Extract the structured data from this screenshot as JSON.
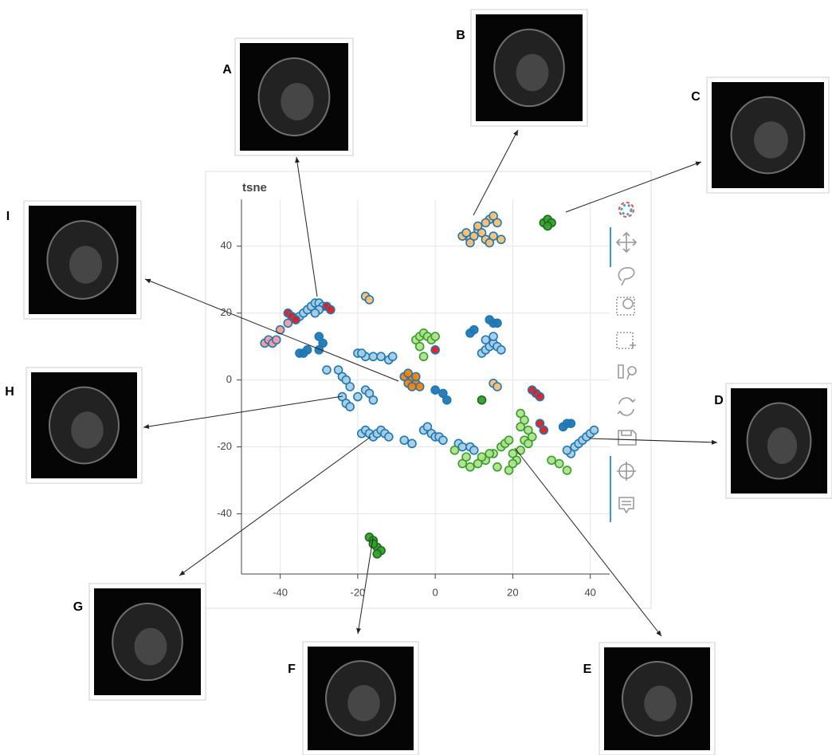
{
  "chart_data": {
    "type": "scatter",
    "title": "tsne",
    "annotations": [
      "A",
      "B",
      "C",
      "D",
      "E",
      "F",
      "G",
      "H",
      "I"
    ],
    "xlim": [
      -50,
      45
    ],
    "ylim": [
      -58,
      54
    ],
    "xticks": [
      -40,
      -20,
      0,
      20,
      40
    ],
    "yticks": [
      -40,
      -20,
      0,
      20,
      40
    ],
    "grid": true,
    "series": [
      {
        "color": "#a6cee3",
        "edgecolor": "#1f78b4",
        "x": [
          -36,
          -35,
          -34,
          -33,
          -32,
          -31,
          -30,
          -29,
          -30,
          -31,
          -20,
          -18,
          -16,
          -14,
          -12,
          -11,
          -19,
          -28,
          -25,
          -24,
          -23,
          -22,
          -24,
          -23,
          -22,
          -18,
          -17,
          -16,
          -20,
          12,
          13,
          14,
          15,
          16,
          17,
          13,
          15,
          -19,
          -18,
          -17,
          -16,
          -15,
          -14,
          -13,
          -12,
          -8,
          -6,
          -3,
          -2,
          -1,
          0,
          1,
          2,
          6,
          7,
          9,
          10,
          35,
          36,
          37,
          38,
          39,
          40,
          41,
          34
        ],
        "values": [
          18,
          19,
          20,
          21,
          22,
          23,
          23,
          22,
          21,
          20,
          8,
          7,
          7,
          7,
          6,
          7,
          8,
          3,
          3,
          1,
          0,
          -2,
          -5,
          -7,
          -8,
          -3,
          -4,
          -6,
          -5,
          8,
          9,
          10,
          11,
          10,
          9,
          12,
          13,
          -16,
          -15,
          -16,
          -17,
          -16,
          -15,
          -16,
          -17,
          -18,
          -19,
          -15,
          -14,
          -16,
          -17,
          -17,
          -18,
          -19,
          -20,
          -20,
          -21,
          -22,
          -20,
          -19,
          -18,
          -17,
          -16,
          -15,
          -21
        ]
      },
      {
        "color": "#1f78b4",
        "edgecolor": "#1f78b4",
        "x": [
          -35,
          -34,
          -33,
          -30,
          -29,
          -30,
          0,
          2,
          3,
          9,
          10,
          14,
          15,
          16,
          33,
          34,
          35
        ],
        "values": [
          8,
          8,
          9,
          13,
          11,
          9,
          -3,
          -4,
          -6,
          14,
          15,
          18,
          17,
          17,
          -14,
          -13,
          -13
        ]
      },
      {
        "color": "#b2df8a",
        "edgecolor": "#33a02c",
        "x": [
          -5,
          -4,
          -3,
          -2,
          -1,
          0,
          -3,
          -4,
          22,
          23,
          22,
          24,
          5,
          7,
          9,
          11,
          13,
          15,
          17,
          18,
          19,
          20,
          21,
          22,
          23,
          24,
          25,
          8,
          12,
          16,
          19,
          14,
          20,
          30,
          32,
          34
        ],
        "values": [
          12,
          13,
          14,
          13,
          12,
          13,
          7,
          10,
          -10,
          -12,
          -14,
          -15,
          -21,
          -25,
          -26,
          -25,
          -24,
          -22,
          -20,
          -19,
          -18,
          -22,
          -24,
          -21,
          -18,
          -19,
          -17,
          -23,
          -23,
          -26,
          -27,
          -22,
          -25,
          -24,
          -25,
          -27
        ]
      },
      {
        "color": "#33a02c",
        "edgecolor": "#1e6b1a",
        "x": [
          28,
          29,
          30,
          29,
          12,
          -17,
          -16,
          -15,
          -14,
          -15,
          -16
        ],
        "values": [
          47,
          48,
          47,
          46,
          -6,
          -47,
          -48,
          -50,
          -51,
          -52,
          -49
        ]
      },
      {
        "color": "#fb9a99",
        "edgecolor": "#1f78b4",
        "x": [
          -44,
          -43,
          -42,
          -40,
          -41,
          -38
        ],
        "values": [
          11,
          12,
          11,
          15,
          12,
          17
        ]
      },
      {
        "color": "#e31a1c",
        "edgecolor": "#1f78b4",
        "x": [
          -38,
          -37,
          -36,
          -28,
          -27,
          0,
          25,
          26,
          27,
          27,
          28
        ],
        "values": [
          20,
          19,
          18,
          22,
          21,
          9,
          -3,
          -4,
          -5,
          -13,
          -15
        ]
      },
      {
        "color": "#fdbf6f",
        "edgecolor": "#1f78b4",
        "x": [
          7,
          8,
          9,
          10,
          11,
          12,
          13,
          14,
          15,
          16,
          17,
          9,
          11,
          13,
          15,
          14,
          -18,
          -17,
          15,
          16
        ],
        "values": [
          43,
          44,
          42,
          43,
          45,
          44,
          42,
          48,
          49,
          47,
          42,
          41,
          46,
          47,
          43,
          41,
          25,
          24,
          -1,
          -2
        ]
      },
      {
        "color": "#ff7f00",
        "edgecolor": "#1f78b4",
        "x": [
          -8,
          -7,
          -6,
          -5,
          -4,
          -7,
          -6,
          -5
        ],
        "values": [
          1,
          2,
          0,
          -1,
          -2,
          -1,
          -2,
          1
        ]
      }
    ]
  }
}
